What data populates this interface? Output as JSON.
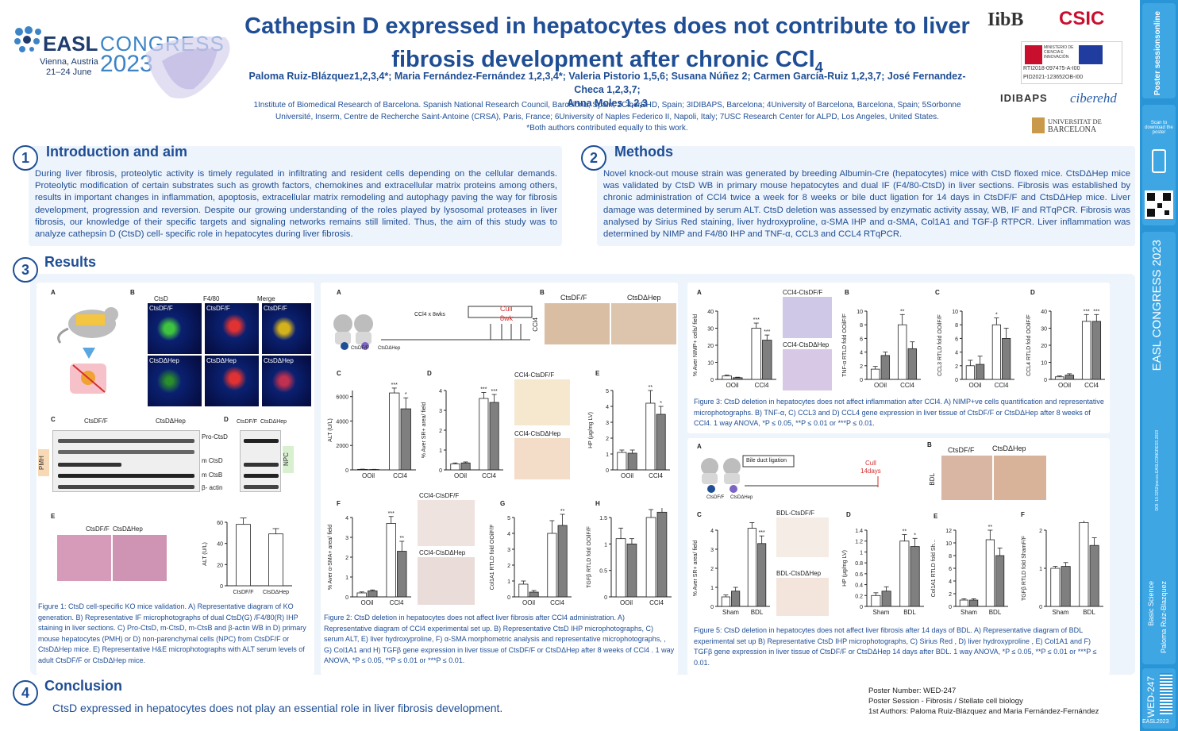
{
  "header": {
    "congress": {
      "easl": "EASL",
      "congress": "CONGRESS",
      "city": "Vienna, Austria",
      "dates": "21–24 June",
      "year": "2023"
    },
    "title_line1": "Cathepsin D expressed in hepatocytes does not contribute to liver",
    "title_line2": "fibrosis development after chronic CCl",
    "title_sub": "4",
    "authors_line1": "Paloma Ruiz-Blázquez1,2,3,4*; Maria Fernández-Fernández 1,2,3,4*; Valeria Pistorio 1,5,6; Susana Núñez 2; Carmen García-Ruiz 1,2,3,7;  José Fernandez-Checa 1,2,3,7;",
    "authors_line2": "Anna Moles 1,2,3",
    "affil_line1": "1Institute of Biomedical Research of Barcelona. Spanish National Research Council, Barcelona, Spain; 2CiberEHD, Spain; 3IDIBAPS, Barcelona; 4University of Barcelona, Barcelona, Spain; 5Sorbonne",
    "affil_line2": "Université, Inserm, Centre de Recherche Saint-Antoine (CRSA), Paris, France; 6University of Naples Federico II, Napoli, Italy; 7USC Research Center for ALPD, Los Angeles, United States.",
    "equal": "*Both authors contributed equally to this work."
  },
  "sponsors": {
    "iibb": "IibB",
    "csic": "CSIC",
    "grant1": "RTI2018-097475-A-I00",
    "grant2": "PID2021-123652OB-I00",
    "idibaps": "IDIBAPS",
    "ciberehd": "ciberehd",
    "ub1": "UNIVERSITAT DE",
    "ub2": "BARCELONA",
    "ministerio": "MINISTERIO DE CIENCIA E INNOVACIÓN"
  },
  "sidebar": {
    "top": "Poster sessionsonline",
    "scan": "Scan to download the poster",
    "easl": "EASL CONGRESS 2023",
    "doi": "DOI: 10.3252/pso.eu.EASLCONGRESS.2023",
    "session": "Basic Science",
    "author": "Paloma Ruiz-Blazquez",
    "number": "WED-247",
    "tag": "EASL2023"
  },
  "intro": {
    "num": "1",
    "title": "Introduction and aim",
    "text": "During liver fibrosis, proteolytic activity is timely regulated in infiltrating and resident cells depending on the cellular demands. Proteolytic modification of certain substrates such as growth factors, chemokines and extracellular matrix proteins among others, results in important changes in inflammation, apoptosis, extracellular matrix remodeling and autophagy paving the way for fibrosis development, progression and reversion. Despite our growing understanding of the roles played by lysosomal proteases in liver fibrosis, our knowledge of their specific targets and signaling networks remains still limited. Thus, the aim of this study was to analyze cathepsin D (CtsD) cell- specific role in hepatocytes during liver fibrosis."
  },
  "methods": {
    "num": "2",
    "title": "Methods",
    "text": "Novel knock-out mouse strain was generated by breeding Albumin-Cre (hepatocytes) mice with CtsD floxed mice. CtsDΔHep mice was validated by CtsD WB in primary mouse hepatocytes and dual IF (F4/80-CtsD) in liver sections. Fibrosis was established by chronic administration of CCl4 twice a week for 8 weeks or bile duct ligation for 14 days in CtsDF/F and CtsDΔHep mice. Liver damage was determined by serum ALT. CtsD deletion was assessed by enzymatic activity assay, WB, IF and RTqPCR. Fibrosis was analysed by Sirius Red staining, liver hydroxyproline, α-SMA IHP and α-SMA, Col1A1 and TGF-β RTPCR. Liver inflammation was determined by NIMP and F4/80 IHP and TNF-α, CCL3 and CCL4 RTqPCR."
  },
  "results": {
    "num": "3",
    "title": "Results"
  },
  "fig1": {
    "labels": {
      "a": "A",
      "b": "B",
      "c": "C",
      "d": "D",
      "e": "E"
    },
    "col_ctsd": "CtsD",
    "col_f480": "F4/80",
    "col_merge": "Merge",
    "ctsd_ff": "CtsDF/F",
    "ctsd_hep": "CtsDΔHep",
    "wb_pro": "Pro-CtsD",
    "wb_m": "m CtsD",
    "wb_mb": "m CtsB",
    "wb_actin": "β- actin",
    "pmh": "PMH",
    "npc": "NPC",
    "alt_ylabel": "ALT (U/L)",
    "caption": "Figure 1: CtsD cell-specific KO mice validation. A) Representative diagram of KO generation. B) Representative IF microphotographs of dual CtsD(G) /F4/80(R) IHP staining in liver sections. C) Pro-CtsD, m-CtsD, m-CtsB and β-actin WB in D) primary mouse hepatocytes (PMH) or D) non-parenchymal cells (NPC) from CtsDF/F or CtsDΔHep mice. E) Representative H&E microphotographs with ALT serum levels of adult CtsDF/F or CtsDΔHep mice."
  },
  "fig2": {
    "labels": {
      "a": "A",
      "b": "B",
      "c": "C",
      "d": "D",
      "e": "E",
      "f": "F",
      "g": "G",
      "h": "H"
    },
    "ccl4_8wks": "CCl4 x 8wks",
    "cull": "Cull",
    "cull2": "8wk",
    "ctsd_ff": "CtsDF/F",
    "ctsd_hep": "CtsDΔHep",
    "ccl4": "CCl4",
    "sr_ff": "CCl4-CtsDF/F",
    "sr_hep": "CCl4-CtsDΔHep",
    "caption": "Figure 2: CtsD deletion in hepatocytes does not affect liver fibrosis after CCl4 administration. A) Representative diagram of CCl4 experimental set up. B) Representative CtsD IHP microphotographs, C) serum ALT, E) liver hydroxyproline, F) α-SMA morphometric analysis and representative microphotographs, , G) Col1A1 and H) TGFβ gene expression in liver tissue of CtsDF/F or CtsDΔHep after 8 weeks of CCl4 . 1 way ANOVA, *P ≤ 0.05, **P ≤ 0.01 or ***P ≤ 0.01."
  },
  "fig3": {
    "labels": {
      "a": "A",
      "b": "B",
      "c": "C",
      "d": "D"
    },
    "ccl4_ff": "CCl4-CtsDF/F",
    "ccl4_hep": "CCl4-CtsDΔHep",
    "caption": "Figure 3: CtsD deletion in hepatocytes does not affect inflammation after CCl4. A) NIMP+ve cells quantification and representative microphotographs. B) TNF-α, C) CCL3 and D) CCL4 gene expression in liver tissue of CtsDF/F or CtsDΔHep after 8 weeks of CCl4. 1 way ANOVA, *P ≤ 0.05, **P ≤ 0.01 or ***P ≤ 0.01."
  },
  "fig5": {
    "labels": {
      "a": "A",
      "b": "B",
      "c": "C",
      "d": "D",
      "e": "E",
      "f": "F"
    },
    "bdl_label": "Bile duct ligation",
    "cull": "Cull",
    "cull2": "14days",
    "bdl": "BDL",
    "bdl_ff": "BDL-CtsDF/F",
    "bdl_hep": "BDL-CtsDΔHep",
    "ctsd_ff": "CtsDF/F",
    "ctsd_hep": "CtsDΔHep",
    "caption": "Figure 5: CtsD deletion in hepatocytes does not affect liver fibrosis after 14 days of BDL. A) Representative diagram of BDL experimental set up B) Representative CtsD IHP microphotographs, C) Sirius Red , D) liver hydroxyproline , E) Col1A1 and F) TGFβ gene expression in liver tissue of CtsDF/F or CtsDΔHep 14 days after BDL. 1 way ANOVA, *P ≤ 0.05, **P ≤ 0.01 or ***P ≤ 0.01."
  },
  "conclusion": {
    "num": "4",
    "title": "Conclusion",
    "text": "CtsD expressed in hepatocytes does not play an essential role in liver fibrosis development."
  },
  "poster_info": {
    "number": "Poster Number: WED-247",
    "session": "Poster Session - Fibrosis / Stellate cell biology",
    "authors": "1st Authors: Paloma Ruiz-Blázquez and Maria Fernández-Fernández"
  },
  "colors": {
    "navy": "#1f4e95",
    "accent": "#2a95d6",
    "panel_bg": "#eef4fb",
    "bar_grey": "#7f7f7f"
  },
  "chart_data": [
    {
      "id": "fig1E_alt",
      "type": "bar",
      "categories": [
        "CtsDF/F",
        "CtsDΔHep"
      ],
      "values": [
        58,
        49
      ],
      "errors": [
        6,
        5
      ],
      "ylabel": "ALT (U/L)",
      "ylim": [
        0,
        60
      ],
      "yticks": [
        0,
        20,
        40,
        60
      ]
    },
    {
      "id": "fig2C_alt",
      "type": "bar",
      "groups": [
        "OOil",
        "CCl4"
      ],
      "series": [
        {
          "name": "CtsDF/F",
          "values": [
            40,
            6300
          ]
        },
        {
          "name": "CtsDΔHep",
          "values": [
            30,
            5000
          ]
        }
      ],
      "errors": [
        [
          20,
          400
        ],
        [
          15,
          900
        ]
      ],
      "sig": [
        "",
        "***",
        "",
        "*"
      ],
      "ylabel": "ALT (U/L)",
      "ylim": [
        0,
        6500
      ],
      "yticks": [
        0,
        2000,
        4000,
        6000
      ]
    },
    {
      "id": "fig2D_sr",
      "type": "bar",
      "groups": [
        "OOil",
        "CCl4"
      ],
      "series": [
        {
          "name": "CtsDF/F",
          "values": [
            0.3,
            3.6
          ]
        },
        {
          "name": "CtsDΔHep",
          "values": [
            0.35,
            3.4
          ]
        }
      ],
      "errors": [
        [
          0.05,
          0.3
        ],
        [
          0.05,
          0.4
        ]
      ],
      "sig": [
        "",
        "***",
        "",
        "***"
      ],
      "ylabel": "% Aver SR+ area/ field",
      "ylim": [
        0,
        4
      ],
      "yticks": [
        0,
        1,
        2,
        3,
        4
      ]
    },
    {
      "id": "fig2E_hp",
      "type": "bar",
      "groups": [
        "OOil",
        "CCl4"
      ],
      "series": [
        {
          "name": "CtsDF/F",
          "values": [
            1.1,
            4.2
          ]
        },
        {
          "name": "CtsDΔHep",
          "values": [
            1.05,
            3.5
          ]
        }
      ],
      "errors": [
        [
          0.15,
          0.8
        ],
        [
          0.2,
          0.5
        ]
      ],
      "sig": [
        "",
        "**",
        "",
        "*"
      ],
      "ylabel": "HP (μg/mg LV)",
      "ylim": [
        0,
        5
      ],
      "yticks": [
        0,
        1,
        2,
        3,
        4,
        5
      ]
    },
    {
      "id": "fig2F_asma",
      "type": "bar",
      "groups": [
        "OOil",
        "CCl4"
      ],
      "series": [
        {
          "name": "CtsDF/F",
          "values": [
            0.2,
            3.7
          ]
        },
        {
          "name": "CtsDΔHep",
          "values": [
            0.3,
            2.3
          ]
        }
      ],
      "errors": [
        [
          0.05,
          0.35
        ],
        [
          0.05,
          0.5
        ]
      ],
      "sig": [
        "",
        "***",
        "",
        "**"
      ],
      "ylabel": "% Aver α-SMA+ area/ field",
      "ylim": [
        0,
        4
      ],
      "yticks": [
        0,
        1,
        2,
        3,
        4
      ]
    },
    {
      "id": "fig2G_col1a1",
      "type": "bar",
      "groups": [
        "OOil",
        "CCl4"
      ],
      "series": [
        {
          "name": "CtsDF/F",
          "values": [
            0.8,
            4.0
          ]
        },
        {
          "name": "CtsDΔHep",
          "values": [
            0.3,
            4.5
          ]
        }
      ],
      "errors": [
        [
          0.2,
          0.8
        ],
        [
          0.1,
          0.7
        ]
      ],
      "sig": [
        "",
        "",
        "",
        "**"
      ],
      "ylabel": "Col1A1 RTLD fold OOilF/F",
      "ylim": [
        0,
        5
      ],
      "yticks": [
        0,
        1,
        2,
        3,
        4,
        5
      ]
    },
    {
      "id": "fig2H_tgfb",
      "type": "bar",
      "groups": [
        "OOil",
        "CCl4"
      ],
      "series": [
        {
          "name": "CtsDF/F",
          "values": [
            1.1,
            1.5
          ]
        },
        {
          "name": "CtsDΔHep",
          "values": [
            1.0,
            1.6
          ]
        }
      ],
      "errors": [
        [
          0.2,
          0.15
        ],
        [
          0.1,
          0.15
        ]
      ],
      "sig": [
        "",
        "",
        "",
        ""
      ],
      "ylabel": "TGFβ RTLD fold OOilF/F",
      "ylim": [
        0,
        1.5
      ],
      "yticks": [
        0,
        0.5,
        1.0,
        1.5
      ]
    },
    {
      "id": "fig3A_nimp",
      "type": "bar",
      "groups": [
        "OOil",
        "CCl4"
      ],
      "series": [
        {
          "name": "CtsDF/F",
          "values": [
            2,
            30
          ]
        },
        {
          "name": "CtsDΔHep",
          "values": [
            1,
            23
          ]
        }
      ],
      "errors": [
        [
          0.5,
          3
        ],
        [
          0.3,
          3
        ]
      ],
      "sig": [
        "",
        "***",
        "",
        "***"
      ],
      "ylabel": "% Aver NIMP+ cells/ field",
      "ylim": [
        0,
        40
      ],
      "yticks": [
        0,
        10,
        20,
        30,
        40
      ]
    },
    {
      "id": "fig3B_tnf",
      "type": "bar",
      "groups": [
        "OOil",
        "CCl4"
      ],
      "series": [
        {
          "name": "CtsDF/F",
          "values": [
            1.5,
            8.0
          ]
        },
        {
          "name": "CtsDΔHep",
          "values": [
            3.5,
            4.5
          ]
        }
      ],
      "errors": [
        [
          0.4,
          1.5
        ],
        [
          0.5,
          1
        ]
      ],
      "sig": [
        "",
        "**",
        "",
        ""
      ],
      "ylabel": "TNF-α RTLD fold OOilF/F",
      "ylim": [
        0,
        10
      ],
      "yticks": [
        0,
        2,
        4,
        6,
        8,
        10
      ]
    },
    {
      "id": "fig3C_ccl3",
      "type": "bar",
      "groups": [
        "OOil",
        "CCl4"
      ],
      "series": [
        {
          "name": "CtsDF/F",
          "values": [
            2.0,
            8.0
          ]
        },
        {
          "name": "CtsDΔHep",
          "values": [
            2.2,
            6.0
          ]
        }
      ],
      "errors": [
        [
          0.8,
          1
        ],
        [
          1.2,
          1.5
        ]
      ],
      "sig": [
        "",
        "*",
        "",
        ""
      ],
      "ylabel": "CCL3 RTLD fold OOilF/F",
      "ylim": [
        0,
        10
      ],
      "yticks": [
        0,
        2,
        4,
        6,
        8,
        10
      ]
    },
    {
      "id": "fig3D_ccl4",
      "type": "bar",
      "groups": [
        "OOil",
        "CCl4"
      ],
      "series": [
        {
          "name": "CtsDF/F",
          "values": [
            1.5,
            34
          ]
        },
        {
          "name": "CtsDΔHep",
          "values": [
            2.5,
            34
          ]
        }
      ],
      "errors": [
        [
          0.5,
          4
        ],
        [
          0.8,
          4
        ]
      ],
      "sig": [
        "",
        "***",
        "",
        "***"
      ],
      "ylabel": "CCL4 RTLD fold OOilF/F",
      "ylim": [
        0,
        40
      ],
      "yticks": [
        0,
        10,
        20,
        30,
        40
      ]
    },
    {
      "id": "fig5C_sr",
      "type": "bar",
      "groups": [
        "Sham",
        "BDL"
      ],
      "series": [
        {
          "name": "CtsDF/F",
          "values": [
            0.5,
            4.1
          ]
        },
        {
          "name": "CtsDΔHep",
          "values": [
            0.8,
            3.3
          ]
        }
      ],
      "errors": [
        [
          0.1,
          0.3
        ],
        [
          0.2,
          0.4
        ]
      ],
      "sig": [
        "",
        "***",
        "",
        "***"
      ],
      "ylabel": "% Aver SR+ area/ field",
      "ylim": [
        0,
        4
      ],
      "yticks": [
        0,
        1,
        2,
        3,
        4
      ]
    },
    {
      "id": "fig5D_hp",
      "type": "bar",
      "groups": [
        "Sham",
        "BDL"
      ],
      "series": [
        {
          "name": "CtsDF/F",
          "values": [
            0.2,
            1.2
          ]
        },
        {
          "name": "CtsDΔHep",
          "values": [
            0.28,
            1.1
          ]
        }
      ],
      "errors": [
        [
          0.05,
          0.12
        ],
        [
          0.08,
          0.15
        ]
      ],
      "sig": [
        "",
        "**",
        "",
        "*"
      ],
      "ylabel": "HP (μg/mg LV)",
      "ylim": [
        0,
        1.4
      ],
      "yticks": [
        0,
        0.2,
        0.4,
        0.6,
        0.8,
        1.0,
        1.2,
        1.4
      ]
    },
    {
      "id": "fig5E_col1a1",
      "type": "bar",
      "groups": [
        "Sham",
        "BDL"
      ],
      "series": [
        {
          "name": "CtsDF/F",
          "values": [
            1.0,
            10.5
          ]
        },
        {
          "name": "CtsDΔHep",
          "values": [
            1.0,
            8.0
          ]
        }
      ],
      "errors": [
        [
          0.2,
          1.5
        ],
        [
          0.2,
          1.2
        ]
      ],
      "sig": [
        "",
        "**",
        "",
        ""
      ],
      "ylabel": "Col1A1 RTLD fold Sh...",
      "ylim": [
        0,
        12
      ],
      "yticks": [
        0,
        2,
        4,
        6,
        8,
        10,
        12
      ]
    },
    {
      "id": "fig5F_tgfb",
      "type": "bar",
      "groups": [
        "Sham",
        "BDL"
      ],
      "series": [
        {
          "name": "CtsDF/F",
          "values": [
            1.0,
            2.2
          ]
        },
        {
          "name": "CtsDΔHep",
          "values": [
            1.05,
            1.6
          ]
        }
      ],
      "errors": [
        [
          0.05,
          0.4
        ],
        [
          0.1,
          0.2
        ]
      ],
      "sig": [
        "",
        "",
        "",
        ""
      ],
      "ylabel": "TGFβ RTLD fold ShamF/F",
      "ylim": [
        0,
        2
      ],
      "yticks": [
        0,
        1,
        2
      ]
    }
  ]
}
